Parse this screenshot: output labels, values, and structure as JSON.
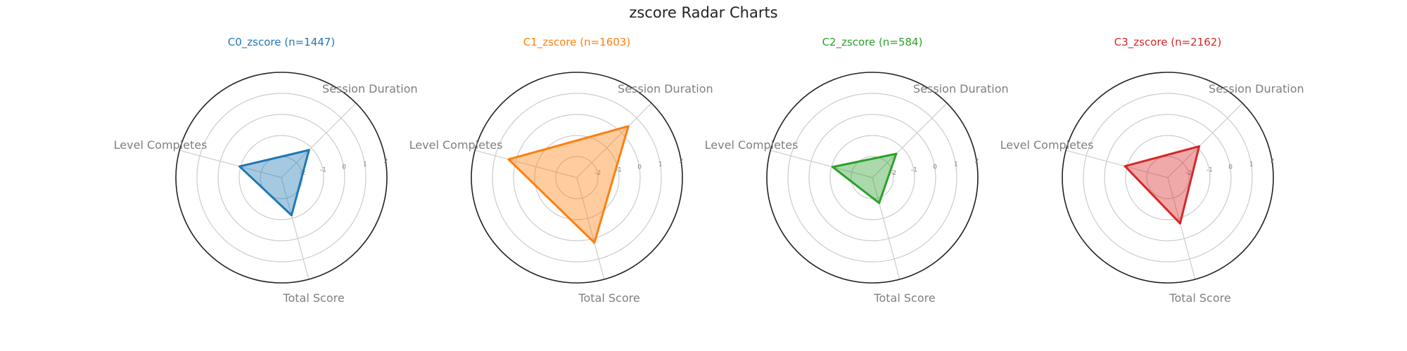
{
  "figure": {
    "title": "zscore Radar Charts"
  },
  "chart_data": [
    {
      "type": "radar",
      "title": "C0_zscore (n=1447)",
      "color": "#1f77b4",
      "axes": [
        "Session Duration",
        "Level Completes",
        "Total Score"
      ],
      "values": [
        -1.15,
        -0.95,
        -1.15
      ],
      "rlim": [
        -3,
        2
      ],
      "ticks": [
        -2,
        -1,
        0,
        1,
        2
      ],
      "grid": true
    },
    {
      "type": "radar",
      "title": "C1_zscore (n=1603)",
      "color": "#ff7f0e",
      "axes": [
        "Session Duration",
        "Level Completes",
        "Total Score"
      ],
      "values": [
        0.45,
        0.35,
        0.2
      ],
      "rlim": [
        -3,
        2
      ],
      "ticks": [
        -2,
        -1,
        0,
        1,
        2
      ],
      "grid": true
    },
    {
      "type": "radar",
      "title": "C2_zscore (n=584)",
      "color": "#2ca02c",
      "axes": [
        "Session Duration",
        "Level Completes",
        "Total Score"
      ],
      "values": [
        -1.4,
        -1.05,
        -1.75
      ],
      "rlim": [
        -3,
        2
      ],
      "ticks": [
        -2,
        -1,
        0,
        1,
        2
      ],
      "grid": true
    },
    {
      "type": "radar",
      "title": "C3_zscore (n=2162)",
      "color": "#d62728",
      "axes": [
        "Session Duration",
        "Level Completes",
        "Total Score"
      ],
      "values": [
        -0.9,
        -0.9,
        -0.75
      ],
      "rlim": [
        -3,
        2
      ],
      "ticks": [
        -2,
        -1,
        0,
        1,
        2
      ],
      "grid": true
    }
  ]
}
